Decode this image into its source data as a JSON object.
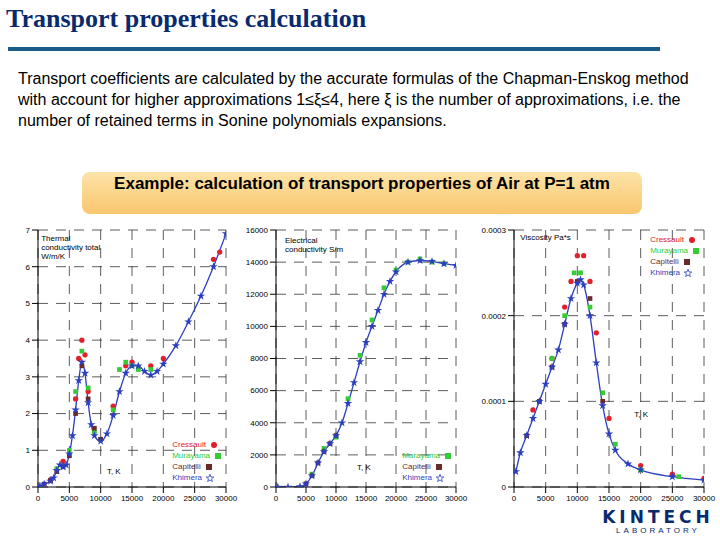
{
  "header": {
    "title": "Transport properties calculation"
  },
  "text": "Transport coefficients are calculated by the accurate formulas of the Chapman-Enskog method with account for higher approximations 1≤ξ≤4, here ξ is the number of approximations, i.e. the number of retained terms in Sonine polynomials expansions.",
  "banner": "Example: calculation of transport properties of Air at P=1 atm",
  "logo": {
    "name": "KINTECH",
    "subtitle": "LABORATORY"
  },
  "chart_data": [
    {
      "type": "line",
      "y_label": "Thermal conductivity total W/m/K",
      "x_label": "T, K",
      "xlim": [
        0,
        30000
      ],
      "xticks": [
        0,
        5000,
        10000,
        15000,
        20000,
        25000,
        30000
      ],
      "ylim": [
        0,
        7
      ],
      "yticks": [
        0,
        1,
        2,
        3,
        4,
        5,
        6,
        7
      ],
      "grid": true,
      "legend": "lower right",
      "series": [
        {
          "name": "Cressault",
          "type": "scatter",
          "marker": "circle",
          "color": "#e0202a",
          "x": [
            2000,
            4000,
            6000,
            6500,
            7000,
            7500,
            8000,
            10000,
            12000,
            14000,
            15000,
            18000,
            20000,
            28000,
            29000
          ],
          "values": [
            0.2,
            0.7,
            2.4,
            3.5,
            4.0,
            3.6,
            2.6,
            1.3,
            2.2,
            3.3,
            3.4,
            3.3,
            3.5,
            6.2,
            6.4
          ]
        },
        {
          "name": "Murayama",
          "type": "scatter",
          "marker": "square",
          "color": "#33cc33",
          "x": [
            3000,
            5000,
            6000,
            7000,
            8000,
            9000,
            10000,
            12000,
            13000,
            14000,
            15000,
            16000,
            18000
          ],
          "values": [
            0.5,
            1.0,
            2.6,
            3.7,
            2.7,
            1.5,
            1.3,
            2.1,
            3.2,
            3.4,
            3.3,
            3.2,
            3.2
          ]
        },
        {
          "name": "Capitelli",
          "type": "scatter",
          "marker": "square",
          "color": "#6b2a2a",
          "x": [
            1000,
            2000,
            3000,
            4000,
            5000,
            6000,
            7000,
            8000,
            9000,
            10000
          ],
          "values": [
            0.08,
            0.17,
            0.42,
            0.55,
            0.85,
            2.0,
            3.3,
            2.4,
            1.6,
            1.3
          ]
        },
        {
          "name": "Khimera",
          "type": "line",
          "marker": "star",
          "color": "#2b3fbf",
          "x": [
            300,
            1000,
            2000,
            2500,
            3000,
            3500,
            4000,
            4500,
            5000,
            5500,
            6000,
            6500,
            7000,
            7500,
            8000,
            8500,
            9000,
            10000,
            11000,
            12000,
            13000,
            14000,
            15000,
            16000,
            17000,
            18000,
            19000,
            20000,
            22000,
            24000,
            26000,
            28000,
            30000
          ],
          "values": [
            0.03,
            0.08,
            0.16,
            0.25,
            0.45,
            0.6,
            0.55,
            0.6,
            0.9,
            1.4,
            2.1,
            2.9,
            3.4,
            3.1,
            2.3,
            1.7,
            1.4,
            1.25,
            1.45,
            1.95,
            2.6,
            3.1,
            3.3,
            3.3,
            3.15,
            3.05,
            3.15,
            3.35,
            3.85,
            4.5,
            5.2,
            6.0,
            6.9
          ]
        }
      ]
    },
    {
      "type": "line",
      "y_label": "Electrical conductivity S/m",
      "x_label": "T, K",
      "xlim": [
        0,
        30000
      ],
      "xticks": [
        0,
        5000,
        10000,
        15000,
        20000,
        25000,
        30000
      ],
      "ylim": [
        0,
        16000
      ],
      "yticks": [
        0,
        2000,
        4000,
        6000,
        8000,
        10000,
        12000,
        14000,
        16000
      ],
      "grid": true,
      "legend": "lower right",
      "series": [
        {
          "name": "Murayama",
          "type": "scatter",
          "marker": "square",
          "color": "#33cc33",
          "x": [
            6000,
            8000,
            10000,
            12000,
            14000,
            16000,
            18000,
            20000,
            22000,
            24000,
            26000,
            28000
          ],
          "values": [
            800,
            2400,
            3100,
            5500,
            8200,
            10400,
            12400,
            13500,
            14000,
            14200,
            14000,
            13900
          ]
        },
        {
          "name": "Capitelli",
          "type": "scatter",
          "marker": "square",
          "color": "#6b2a2a",
          "x": [
            5000,
            6000,
            7000,
            8000,
            9000,
            10000
          ],
          "values": [
            200,
            700,
            1500,
            2200,
            2700,
            3200
          ]
        },
        {
          "name": "Khimera",
          "type": "line",
          "marker": "star",
          "color": "#2b3fbf",
          "x": [
            300,
            2000,
            4000,
            5000,
            6000,
            7000,
            8000,
            9000,
            10000,
            11000,
            12000,
            13000,
            14000,
            15000,
            16000,
            17000,
            18000,
            19000,
            20000,
            22000,
            24000,
            26000,
            28000,
            30000
          ],
          "values": [
            0,
            0,
            20,
            200,
            700,
            1500,
            2200,
            2700,
            3200,
            4000,
            5200,
            6500,
            7800,
            9000,
            10000,
            11000,
            12000,
            12800,
            13400,
            14000,
            14100,
            14050,
            13900,
            13800
          ]
        }
      ]
    },
    {
      "type": "line",
      "y_label": "Viscosity Pa*s",
      "x_label": "T, K",
      "xlim": [
        0,
        30000
      ],
      "xticks": [
        0,
        5000,
        10000,
        15000,
        20000,
        25000,
        30000
      ],
      "ylim": [
        0,
        0.0003
      ],
      "yticks": [
        0,
        0.0001,
        0.0002,
        0.0003
      ],
      "grid": true,
      "legend": "upper right",
      "series": [
        {
          "name": "Cressault",
          "type": "scatter",
          "marker": "circle",
          "color": "#e0202a",
          "x": [
            3000,
            6000,
            8000,
            9000,
            10000,
            11000,
            12000,
            13000,
            15000,
            20000,
            25000,
            30000
          ],
          "values": [
            9e-05,
            0.00015,
            0.00021,
            0.00024,
            0.00027,
            0.00027,
            0.00024,
            0.00018,
            8e-05,
            2.5e-05,
            1.5e-05,
            1e-05
          ]
        },
        {
          "name": "Murayama",
          "type": "scatter",
          "marker": "square",
          "color": "#33cc33",
          "x": [
            4000,
            6000,
            8000,
            9500,
            10500,
            12000,
            14000,
            16000,
            20000,
            26000
          ],
          "values": [
            0.0001,
            0.00015,
            0.0002,
            0.00025,
            0.00025,
            0.00021,
            0.00011,
            5e-05,
            2e-05,
            1.2e-05
          ]
        },
        {
          "name": "Capitelli",
          "type": "scatter",
          "marker": "square",
          "color": "#6b2a2a",
          "x": [
            2000,
            4000,
            6000,
            8000,
            10000,
            12000,
            14000
          ],
          "values": [
            6e-05,
            0.0001,
            0.00014,
            0.00019,
            0.00024,
            0.00022,
            0.0001
          ]
        },
        {
          "name": "Khimera",
          "type": "line",
          "marker": "star",
          "color": "#2b3fbf",
          "x": [
            300,
            1000,
            2000,
            3000,
            4000,
            5000,
            6000,
            7000,
            8000,
            9000,
            10000,
            10500,
            11000,
            12000,
            13000,
            14000,
            15000,
            16000,
            18000,
            20000,
            25000,
            30000
          ],
          "values": [
            1.8e-05,
            4e-05,
            6e-05,
            8e-05,
            0.0001,
            0.00012,
            0.00014,
            0.00016,
            0.00019,
            0.00022,
            0.000238,
            0.000242,
            0.000236,
            0.0002,
            0.000145,
            9.5e-05,
            6.2e-05,
            4.3e-05,
            2.7e-05,
            2e-05,
            1.2e-05,
            8e-06
          ]
        }
      ]
    }
  ]
}
